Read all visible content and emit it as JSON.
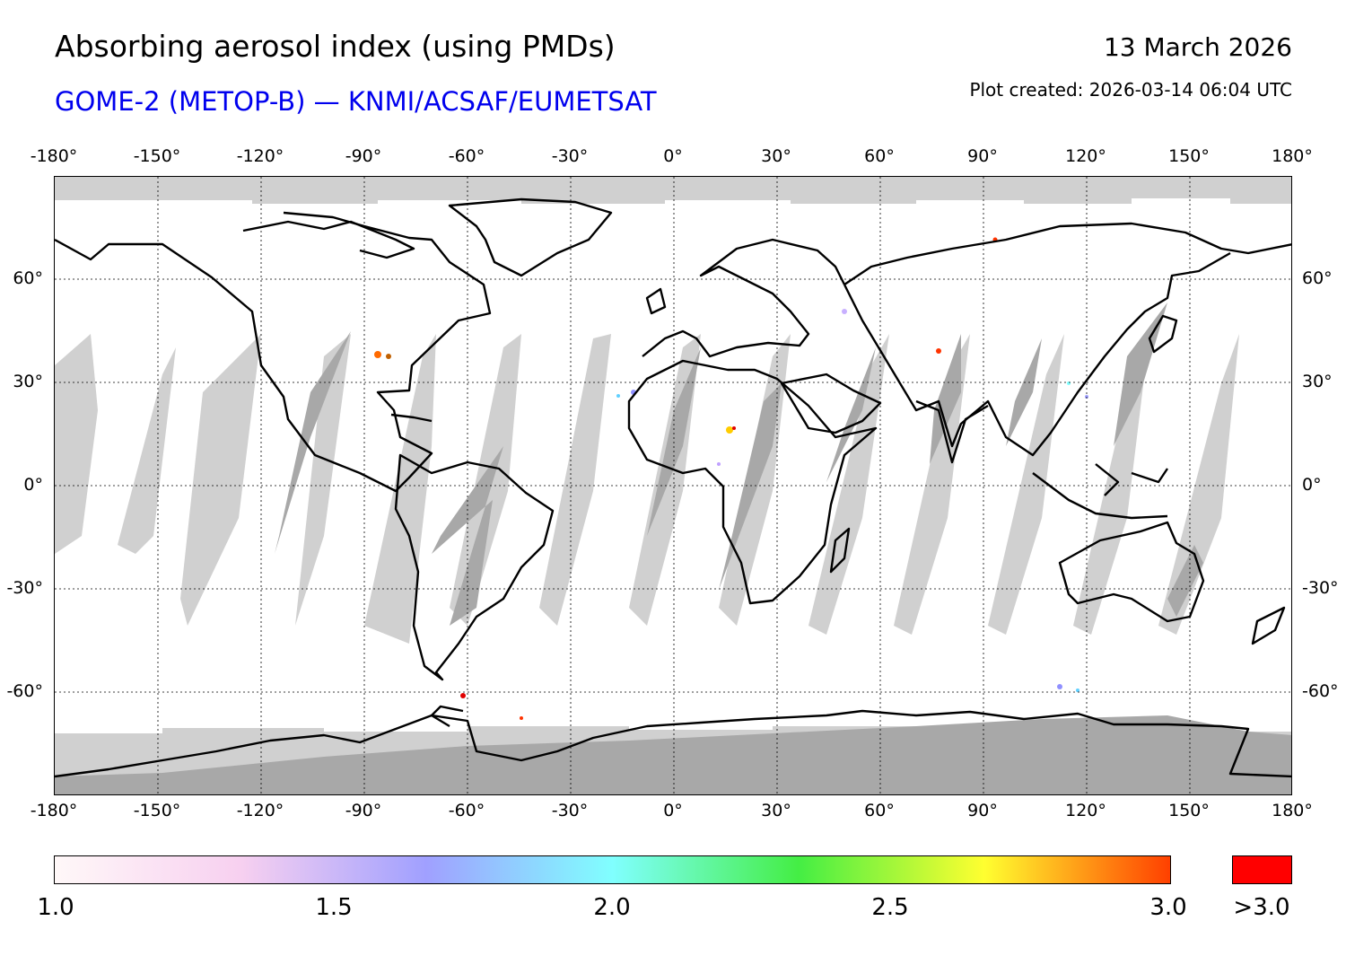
{
  "header": {
    "title": "Absorbing aerosol index (using PMDs)",
    "subtitle": "GOME-2 (METOP-B) — KNMI/ACSAF/EUMETSAT",
    "date": "13 March 2026",
    "plot_created": "Plot created: 2026-03-14 06:04 UTC"
  },
  "axes": {
    "lon_ticks": [
      "-180°",
      "-150°",
      "-120°",
      "-90°",
      "-60°",
      "-30°",
      "0°",
      "30°",
      "60°",
      "90°",
      "120°",
      "150°",
      "180°"
    ],
    "lat_ticks": [
      "60°",
      "30°",
      "0°",
      "-30°",
      "-60°"
    ]
  },
  "colorbar": {
    "labels": [
      "1.0",
      "1.5",
      "2.0",
      "2.5",
      "3.0"
    ],
    "over_label": ">3.0",
    "colors": [
      "#fff8f8",
      "#f7d0f0",
      "#a0a0ff",
      "#80ffff",
      "#44ee44",
      "#ffff30",
      "#ff4000"
    ],
    "over_color": "#ff0000"
  },
  "map_style": {
    "no_data_color": "#d0d0d0",
    "night_color": "#a8a8a8",
    "coast_color": "#000000"
  }
}
